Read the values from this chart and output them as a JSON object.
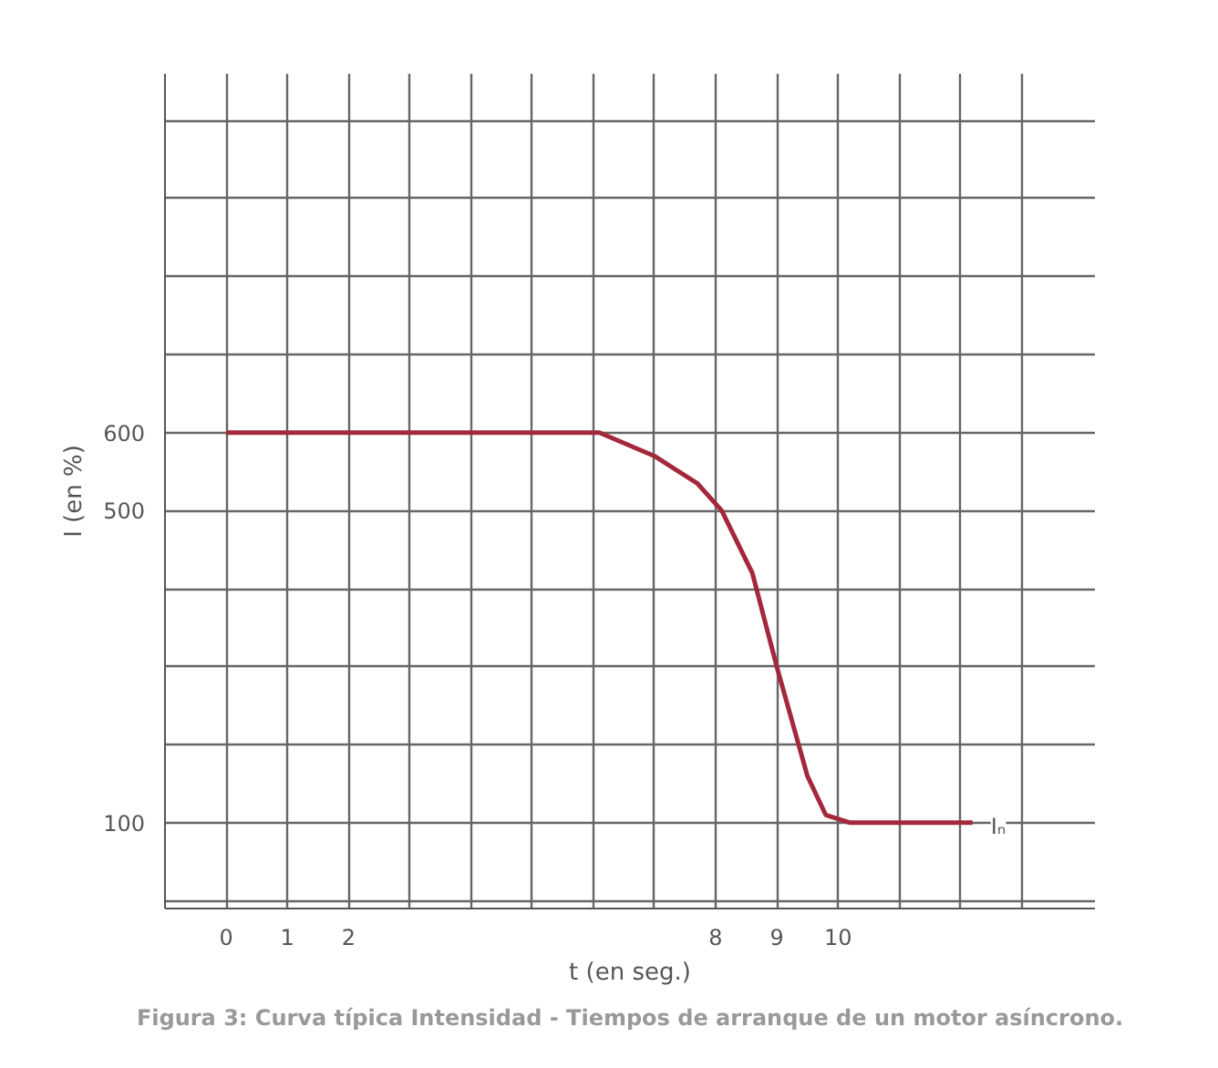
{
  "chart_data": {
    "type": "line",
    "xlabel": "t (en seg.)",
    "ylabel": "I (en %)",
    "x": [
      0,
      6.1,
      7,
      7.7,
      8.1,
      8.6,
      9,
      9.5,
      9.8,
      10.2,
      10.5,
      12.2
    ],
    "series": [
      {
        "color": "#a4283c",
        "values": [
          600,
          600,
          570,
          535,
          500,
          420,
          300,
          160,
          110,
          100,
          100,
          100
        ]
      }
    ],
    "xlim": [
      -1,
      14.2
    ],
    "ylim": [
      -10,
      1060
    ],
    "xticks": [
      0,
      1,
      2,
      {
        "value": 3,
        "label": null
      },
      {
        "value": 4,
        "label": null
      },
      {
        "value": 5,
        "label": null
      },
      {
        "value": 6,
        "label": null
      },
      {
        "value": 7,
        "label": null
      },
      8,
      9,
      10,
      {
        "value": 11,
        "label": null
      },
      {
        "value": 12,
        "label": null
      },
      {
        "value": 13,
        "label": null
      }
    ],
    "yticks": [
      {
        "value": 0,
        "label": null
      },
      100,
      {
        "value": 200,
        "label": null
      },
      {
        "value": 300,
        "label": null
      },
      {
        "value": 400,
        "label": null
      },
      500,
      600,
      {
        "value": 700,
        "label": null
      },
      {
        "value": 800,
        "label": null
      },
      {
        "value": 900,
        "label": null
      },
      {
        "value": 1000,
        "label": null
      }
    ],
    "grid": true,
    "marker": "none",
    "line_style": "solid",
    "annotations": [
      {
        "text": "Iₙ",
        "x": 12.2,
        "y": 100
      },
      "Figura 3: Curva típica Intensidad - Tiempos de arranque de un motor asíncrono."
    ]
  }
}
